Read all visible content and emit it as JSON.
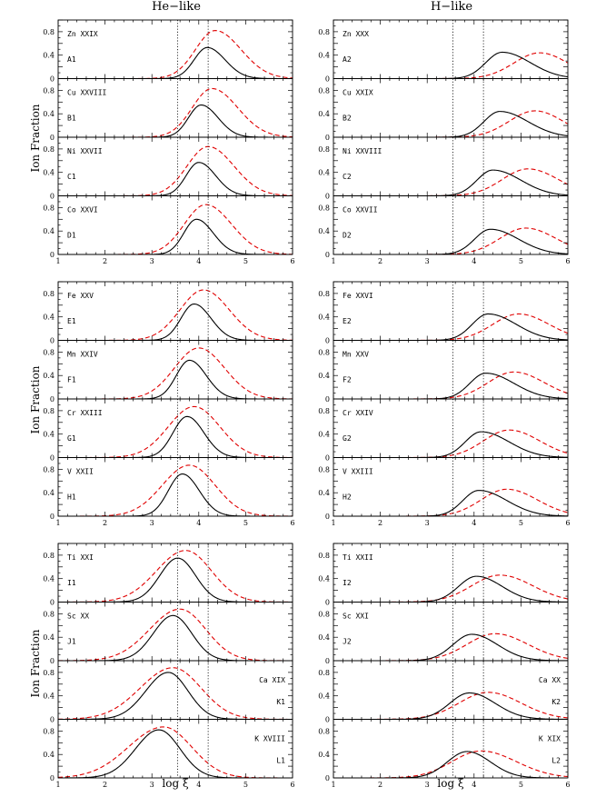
{
  "chart_data": {
    "type": "line",
    "column_titles": [
      "He−like",
      "H−like"
    ],
    "ylabel": "Ion Fraction",
    "xlabel": "log ξ",
    "xlim": [
      1,
      6
    ],
    "ylim": [
      0,
      1
    ],
    "xticks": [
      "1",
      "2",
      "3",
      "4",
      "5",
      "6"
    ],
    "yticks": [
      "0",
      "0.4",
      "0.8"
    ],
    "vertical_lines": [
      3.55,
      4.2
    ],
    "colors": {
      "model_a": "#000000",
      "model_b": "#e00000"
    },
    "panels": [
      {
        "ion": "Zn XXIX",
        "id": "A1",
        "label_pos": "left",
        "solid": {
          "peak": 0.53,
          "center": 4.18,
          "wl": 0.28,
          "wr": 0.38
        },
        "dashed": {
          "peak": 0.82,
          "center": 4.35,
          "wl": 0.42,
          "wr": 0.55
        }
      },
      {
        "ion": "Zn XXX",
        "id": "A2",
        "label_pos": "left",
        "solid": {
          "peak": 0.45,
          "center": 4.6,
          "wl": 0.35,
          "wr": 0.6
        },
        "dashed": {
          "peak": 0.44,
          "center": 5.4,
          "wl": 0.55,
          "wr": 0.6
        }
      },
      {
        "ion": "Cu XXVIII",
        "id": "B1",
        "label_pos": "left",
        "solid": {
          "peak": 0.55,
          "center": 4.05,
          "wl": 0.27,
          "wr": 0.36
        },
        "dashed": {
          "peak": 0.83,
          "center": 4.28,
          "wl": 0.42,
          "wr": 0.55
        }
      },
      {
        "ion": "Cu XXIX",
        "id": "B2",
        "label_pos": "left",
        "solid": {
          "peak": 0.44,
          "center": 4.55,
          "wl": 0.34,
          "wr": 0.6
        },
        "dashed": {
          "peak": 0.45,
          "center": 5.3,
          "wl": 0.55,
          "wr": 0.6
        }
      },
      {
        "ion": "Ni XXVII",
        "id": "C1",
        "label_pos": "left",
        "solid": {
          "peak": 0.57,
          "center": 4.0,
          "wl": 0.27,
          "wr": 0.36
        },
        "dashed": {
          "peak": 0.84,
          "center": 4.2,
          "wl": 0.45,
          "wr": 0.55
        }
      },
      {
        "ion": "Ni XXVIII",
        "id": "C2",
        "label_pos": "left",
        "solid": {
          "peak": 0.44,
          "center": 4.4,
          "wl": 0.34,
          "wr": 0.6
        },
        "dashed": {
          "peak": 0.46,
          "center": 5.15,
          "wl": 0.55,
          "wr": 0.65
        }
      },
      {
        "ion": "Co XXVI",
        "id": "D1",
        "label_pos": "left",
        "solid": {
          "peak": 0.6,
          "center": 3.95,
          "wl": 0.27,
          "wr": 0.36
        },
        "dashed": {
          "peak": 0.85,
          "center": 4.15,
          "wl": 0.46,
          "wr": 0.55
        }
      },
      {
        "ion": "Co XXVII",
        "id": "D2",
        "label_pos": "left",
        "solid": {
          "peak": 0.43,
          "center": 4.35,
          "wl": 0.34,
          "wr": 0.6
        },
        "dashed": {
          "peak": 0.45,
          "center": 5.1,
          "wl": 0.55,
          "wr": 0.65
        }
      },
      {
        "ion": "Fe XXV",
        "id": "E1",
        "label_pos": "left",
        "solid": {
          "peak": 0.62,
          "center": 3.9,
          "wl": 0.28,
          "wr": 0.36
        },
        "dashed": {
          "peak": 0.86,
          "center": 4.1,
          "wl": 0.5,
          "wr": 0.55
        }
      },
      {
        "ion": "Fe XXVI",
        "id": "E2",
        "label_pos": "left",
        "solid": {
          "peak": 0.45,
          "center": 4.3,
          "wl": 0.34,
          "wr": 0.6
        },
        "dashed": {
          "peak": 0.45,
          "center": 4.95,
          "wl": 0.55,
          "wr": 0.65
        }
      },
      {
        "ion": "Mn XXIV",
        "id": "F1",
        "label_pos": "left",
        "solid": {
          "peak": 0.66,
          "center": 3.8,
          "wl": 0.28,
          "wr": 0.36
        },
        "dashed": {
          "peak": 0.87,
          "center": 4.0,
          "wl": 0.52,
          "wr": 0.55
        }
      },
      {
        "ion": "Mn XXV",
        "id": "F2",
        "label_pos": "left",
        "solid": {
          "peak": 0.44,
          "center": 4.25,
          "wl": 0.34,
          "wr": 0.6
        },
        "dashed": {
          "peak": 0.46,
          "center": 4.85,
          "wl": 0.55,
          "wr": 0.65
        }
      },
      {
        "ion": "Cr XXIII",
        "id": "G1",
        "label_pos": "left",
        "solid": {
          "peak": 0.7,
          "center": 3.75,
          "wl": 0.3,
          "wr": 0.36
        },
        "dashed": {
          "peak": 0.87,
          "center": 3.9,
          "wl": 0.55,
          "wr": 0.55
        }
      },
      {
        "ion": "Cr XXIV",
        "id": "G2",
        "label_pos": "left",
        "solid": {
          "peak": 0.44,
          "center": 4.15,
          "wl": 0.34,
          "wr": 0.6
        },
        "dashed": {
          "peak": 0.47,
          "center": 4.75,
          "wl": 0.55,
          "wr": 0.65
        }
      },
      {
        "ion": "V XXII",
        "id": "H1",
        "label_pos": "left",
        "solid": {
          "peak": 0.72,
          "center": 3.65,
          "wl": 0.3,
          "wr": 0.36
        },
        "dashed": {
          "peak": 0.87,
          "center": 3.8,
          "wl": 0.58,
          "wr": 0.55
        }
      },
      {
        "ion": "V XXIII",
        "id": "H2",
        "label_pos": "left",
        "solid": {
          "peak": 0.44,
          "center": 4.1,
          "wl": 0.34,
          "wr": 0.6
        },
        "dashed": {
          "peak": 0.46,
          "center": 4.7,
          "wl": 0.55,
          "wr": 0.65
        }
      },
      {
        "ion": "Ti XXI",
        "id": "I1",
        "label_pos": "left",
        "solid": {
          "peak": 0.75,
          "center": 3.55,
          "wl": 0.38,
          "wr": 0.38
        },
        "dashed": {
          "peak": 0.88,
          "center": 3.72,
          "wl": 0.62,
          "wr": 0.55
        }
      },
      {
        "ion": "Ti XXII",
        "id": "I2",
        "label_pos": "left",
        "solid": {
          "peak": 0.44,
          "center": 4.05,
          "wl": 0.38,
          "wr": 0.55
        },
        "dashed": {
          "peak": 0.46,
          "center": 4.55,
          "wl": 0.6,
          "wr": 0.7
        }
      },
      {
        "ion": "Sc XX",
        "id": "J1",
        "label_pos": "left",
        "solid": {
          "peak": 0.77,
          "center": 3.45,
          "wl": 0.42,
          "wr": 0.4
        },
        "dashed": {
          "peak": 0.88,
          "center": 3.6,
          "wl": 0.65,
          "wr": 0.55
        }
      },
      {
        "ion": "Sc XXI",
        "id": "J2",
        "label_pos": "left",
        "solid": {
          "peak": 0.45,
          "center": 3.95,
          "wl": 0.4,
          "wr": 0.55
        },
        "dashed": {
          "peak": 0.46,
          "center": 4.45,
          "wl": 0.6,
          "wr": 0.7
        }
      },
      {
        "ion": "Ca XIX",
        "id": "K1",
        "label_pos": "right",
        "solid": {
          "peak": 0.8,
          "center": 3.35,
          "wl": 0.48,
          "wr": 0.42
        },
        "dashed": {
          "peak": 0.88,
          "center": 3.45,
          "wl": 0.7,
          "wr": 0.6
        }
      },
      {
        "ion": "Ca XX",
        "id": "K2",
        "label_pos": "right",
        "solid": {
          "peak": 0.45,
          "center": 3.9,
          "wl": 0.42,
          "wr": 0.55
        },
        "dashed": {
          "peak": 0.46,
          "center": 4.3,
          "wl": 0.62,
          "wr": 0.7
        }
      },
      {
        "ion": "K XVIII",
        "id": "L1",
        "label_pos": "right",
        "solid": {
          "peak": 0.82,
          "center": 3.15,
          "wl": 0.5,
          "wr": 0.45
        },
        "dashed": {
          "peak": 0.87,
          "center": 3.25,
          "wl": 0.75,
          "wr": 0.6
        }
      },
      {
        "ion": "K XIX",
        "id": "L2",
        "label_pos": "right",
        "solid": {
          "peak": 0.45,
          "center": 3.85,
          "wl": 0.42,
          "wr": 0.5
        },
        "dashed": {
          "peak": 0.46,
          "center": 4.15,
          "wl": 0.62,
          "wr": 0.75
        }
      }
    ]
  }
}
